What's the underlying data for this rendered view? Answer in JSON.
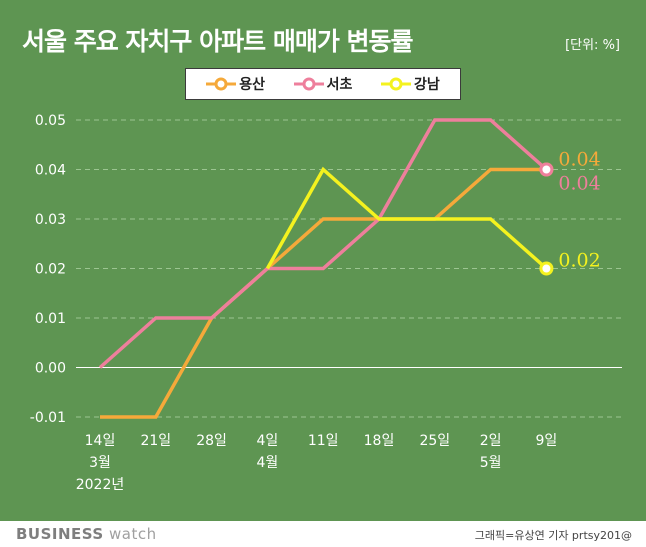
{
  "header": {
    "title": "서울 주요 자치구 아파트 매매가 변동률",
    "unit": "[단위: %]"
  },
  "footer": {
    "brand_bold": "BUSINESS",
    "brand_light": "watch",
    "credit": "그래픽=유상연 기자 prtsy201@"
  },
  "chart_data": {
    "type": "line",
    "title": "서울 주요 자치구 아파트 매매가 변동률",
    "unit": "[단위: %]",
    "categories": [
      "14일",
      "21일",
      "28일",
      "4일",
      "11일",
      "18일",
      "25일",
      "2일",
      "9일"
    ],
    "x_sublabels": [
      [
        "3월",
        "2022년"
      ],
      [],
      [],
      [
        "4월"
      ],
      [],
      [],
      [],
      [
        "5월"
      ],
      []
    ],
    "ylim": [
      -0.01,
      0.05
    ],
    "yticks": [
      "-0.01",
      "0.00",
      "0.01",
      "0.02",
      "0.03",
      "0.04",
      "0.05"
    ],
    "grid": true,
    "legend_position": "top-center",
    "series": [
      {
        "name": "용산",
        "color": "#f5a93a",
        "values": [
          -0.01,
          -0.01,
          0.01,
          0.02,
          0.03,
          0.03,
          0.03,
          0.04,
          0.04
        ],
        "end_label": "0.04"
      },
      {
        "name": "서초",
        "color": "#ee7f9c",
        "values": [
          0.0,
          0.01,
          0.01,
          0.02,
          0.02,
          0.03,
          0.05,
          0.05,
          0.04
        ],
        "end_label": "0.04"
      },
      {
        "name": "강남",
        "color": "#f4f21f",
        "values": [
          null,
          null,
          null,
          0.02,
          0.04,
          0.03,
          0.03,
          0.03,
          0.02
        ],
        "end_label": "0.02"
      }
    ]
  }
}
